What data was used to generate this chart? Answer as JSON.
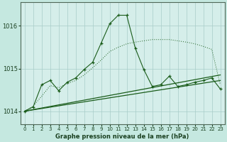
{
  "xlabel": "Graphe pression niveau de la mer (hPa)",
  "xlim": [
    -0.5,
    23.5
  ],
  "ylim": [
    1013.7,
    1016.55
  ],
  "yticks": [
    1014,
    1015,
    1016
  ],
  "xticks": [
    0,
    1,
    2,
    3,
    4,
    5,
    6,
    7,
    8,
    9,
    10,
    11,
    12,
    13,
    14,
    15,
    16,
    17,
    18,
    19,
    20,
    21,
    22,
    23
  ],
  "background_color": "#c5e8e0",
  "plot_bg_color": "#d5eeea",
  "grid_color": "#a8ccc8",
  "line_color": "#1a5c1a",
  "straight_line": {
    "x": [
      0,
      23
    ],
    "y": [
      1014.0,
      1014.72
    ]
  },
  "straight_line2": {
    "x": [
      0,
      23
    ],
    "y": [
      1014.0,
      1014.85
    ]
  },
  "marked_line": {
    "x": [
      0,
      1,
      2,
      3,
      4,
      5,
      6,
      7,
      8,
      9,
      10,
      11,
      12,
      13,
      14,
      15,
      16,
      17,
      18,
      19,
      20,
      21,
      22,
      23
    ],
    "y": [
      1014.0,
      1014.1,
      1014.62,
      1014.72,
      1014.48,
      1014.68,
      1014.78,
      1014.98,
      1015.15,
      1015.6,
      1016.05,
      1016.25,
      1016.25,
      1015.48,
      1014.98,
      1014.58,
      1014.62,
      1014.82,
      1014.58,
      1014.62,
      1014.68,
      1014.72,
      1014.78,
      1014.52
    ]
  },
  "dotted_line": {
    "x": [
      0,
      1,
      2,
      3,
      4,
      5,
      6,
      7,
      8,
      9,
      10,
      11,
      12,
      13,
      14,
      15,
      16,
      17,
      18,
      19,
      20,
      21,
      22,
      23
    ],
    "y": [
      1014.0,
      1014.12,
      1014.35,
      1014.6,
      1014.55,
      1014.65,
      1014.72,
      1014.85,
      1015.02,
      1015.2,
      1015.4,
      1015.5,
      1015.58,
      1015.62,
      1015.65,
      1015.68,
      1015.68,
      1015.68,
      1015.65,
      1015.62,
      1015.58,
      1015.52,
      1015.45,
      1014.62
    ]
  }
}
